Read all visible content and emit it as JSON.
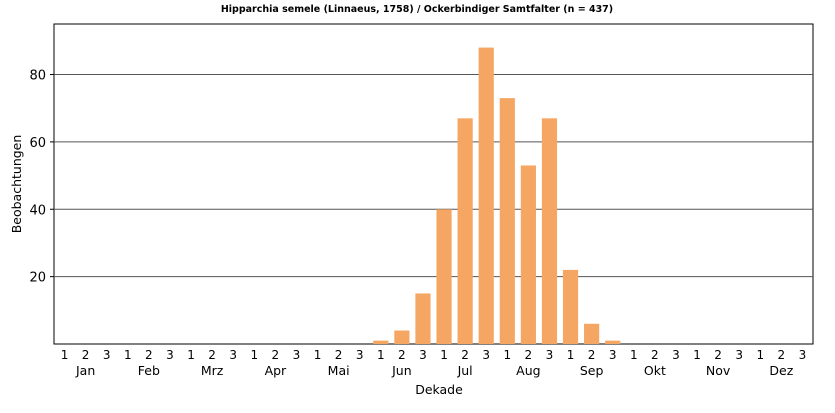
{
  "chart_data": {
    "type": "bar",
    "title": "Hipparchia semele (Linnaeus, 1758) / Ockerbindiger Samtfalter (n = 437)",
    "xlabel": "Dekade",
    "ylabel": "Beobachtungen",
    "ylim": [
      0,
      95
    ],
    "yticks": [
      20,
      40,
      60,
      80
    ],
    "grid": true,
    "bar_color": "#f5a662",
    "months": [
      "Jan",
      "Feb",
      "Mrz",
      "Apr",
      "Mai",
      "Jun",
      "Jul",
      "Aug",
      "Sep",
      "Okt",
      "Nov",
      "Dez"
    ],
    "decades": [
      "1",
      "2",
      "3"
    ],
    "values": [
      0,
      0,
      0,
      0,
      0,
      0,
      0,
      0,
      0,
      0,
      0,
      0,
      0,
      0,
      0,
      1,
      4,
      15,
      40,
      67,
      88,
      73,
      53,
      67,
      22,
      6,
      1,
      0,
      0,
      0,
      0,
      0,
      0,
      0,
      0,
      0
    ]
  }
}
